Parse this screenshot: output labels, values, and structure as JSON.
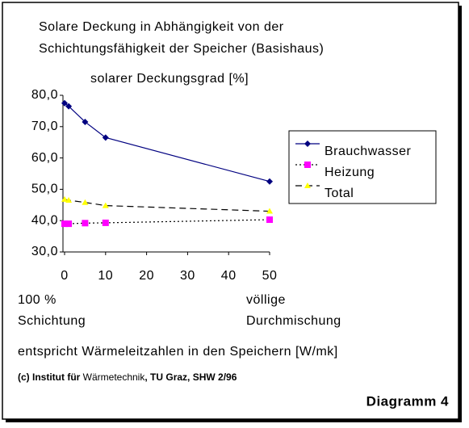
{
  "chart_data": {
    "type": "line",
    "title": [
      "Solare Deckung in Abhängigkeit von der",
      "Schichtungsfähigkeit der Speicher (Basishaus)"
    ],
    "y_label": "solarer Deckungsgrad [%]",
    "x": [
      0,
      1,
      5,
      10,
      50
    ],
    "series": [
      {
        "name": "Brauchwasser",
        "color": "#000080",
        "line_color": "#000080",
        "line_style": "solid",
        "marker": "diamond",
        "values": [
          77.5,
          76.5,
          71.5,
          66.5,
          52.5
        ]
      },
      {
        "name": "Heizung",
        "color": "#ff00ff",
        "line_color": "#000000",
        "line_style": "dotted",
        "marker": "square",
        "values": [
          39.0,
          39.0,
          39.2,
          39.3,
          40.3
        ]
      },
      {
        "name": "Total",
        "color": "#ffff00",
        "line_color": "#000000",
        "line_style": "dashed",
        "marker": "triangle",
        "values": [
          46.8,
          46.5,
          45.8,
          44.8,
          43.0
        ]
      }
    ],
    "xlim": [
      0,
      50
    ],
    "xticks": [
      0,
      10,
      20,
      30,
      40,
      50
    ],
    "ylim": [
      30,
      80
    ],
    "yticks": [
      {
        "value": 30,
        "label": "30,0"
      },
      {
        "value": 40,
        "label": "40,0"
      },
      {
        "value": 50,
        "label": "50,0"
      },
      {
        "value": 60,
        "label": "60,0"
      },
      {
        "value": 70,
        "label": "70,0"
      },
      {
        "value": 80,
        "label": "80,0"
      }
    ],
    "x_notes": [
      [
        "100 %",
        "Schichtung"
      ],
      [
        "völlige",
        "Durchmischung"
      ]
    ],
    "x_label": "entspricht Wärmeleitzahlen in den Speichern  [W/mk]",
    "credit": [
      "(c) Institut für",
      " Wärmetechnik",
      ", TU Graz, SHW 2/96"
    ],
    "figure_label": "Diagramm 4"
  }
}
